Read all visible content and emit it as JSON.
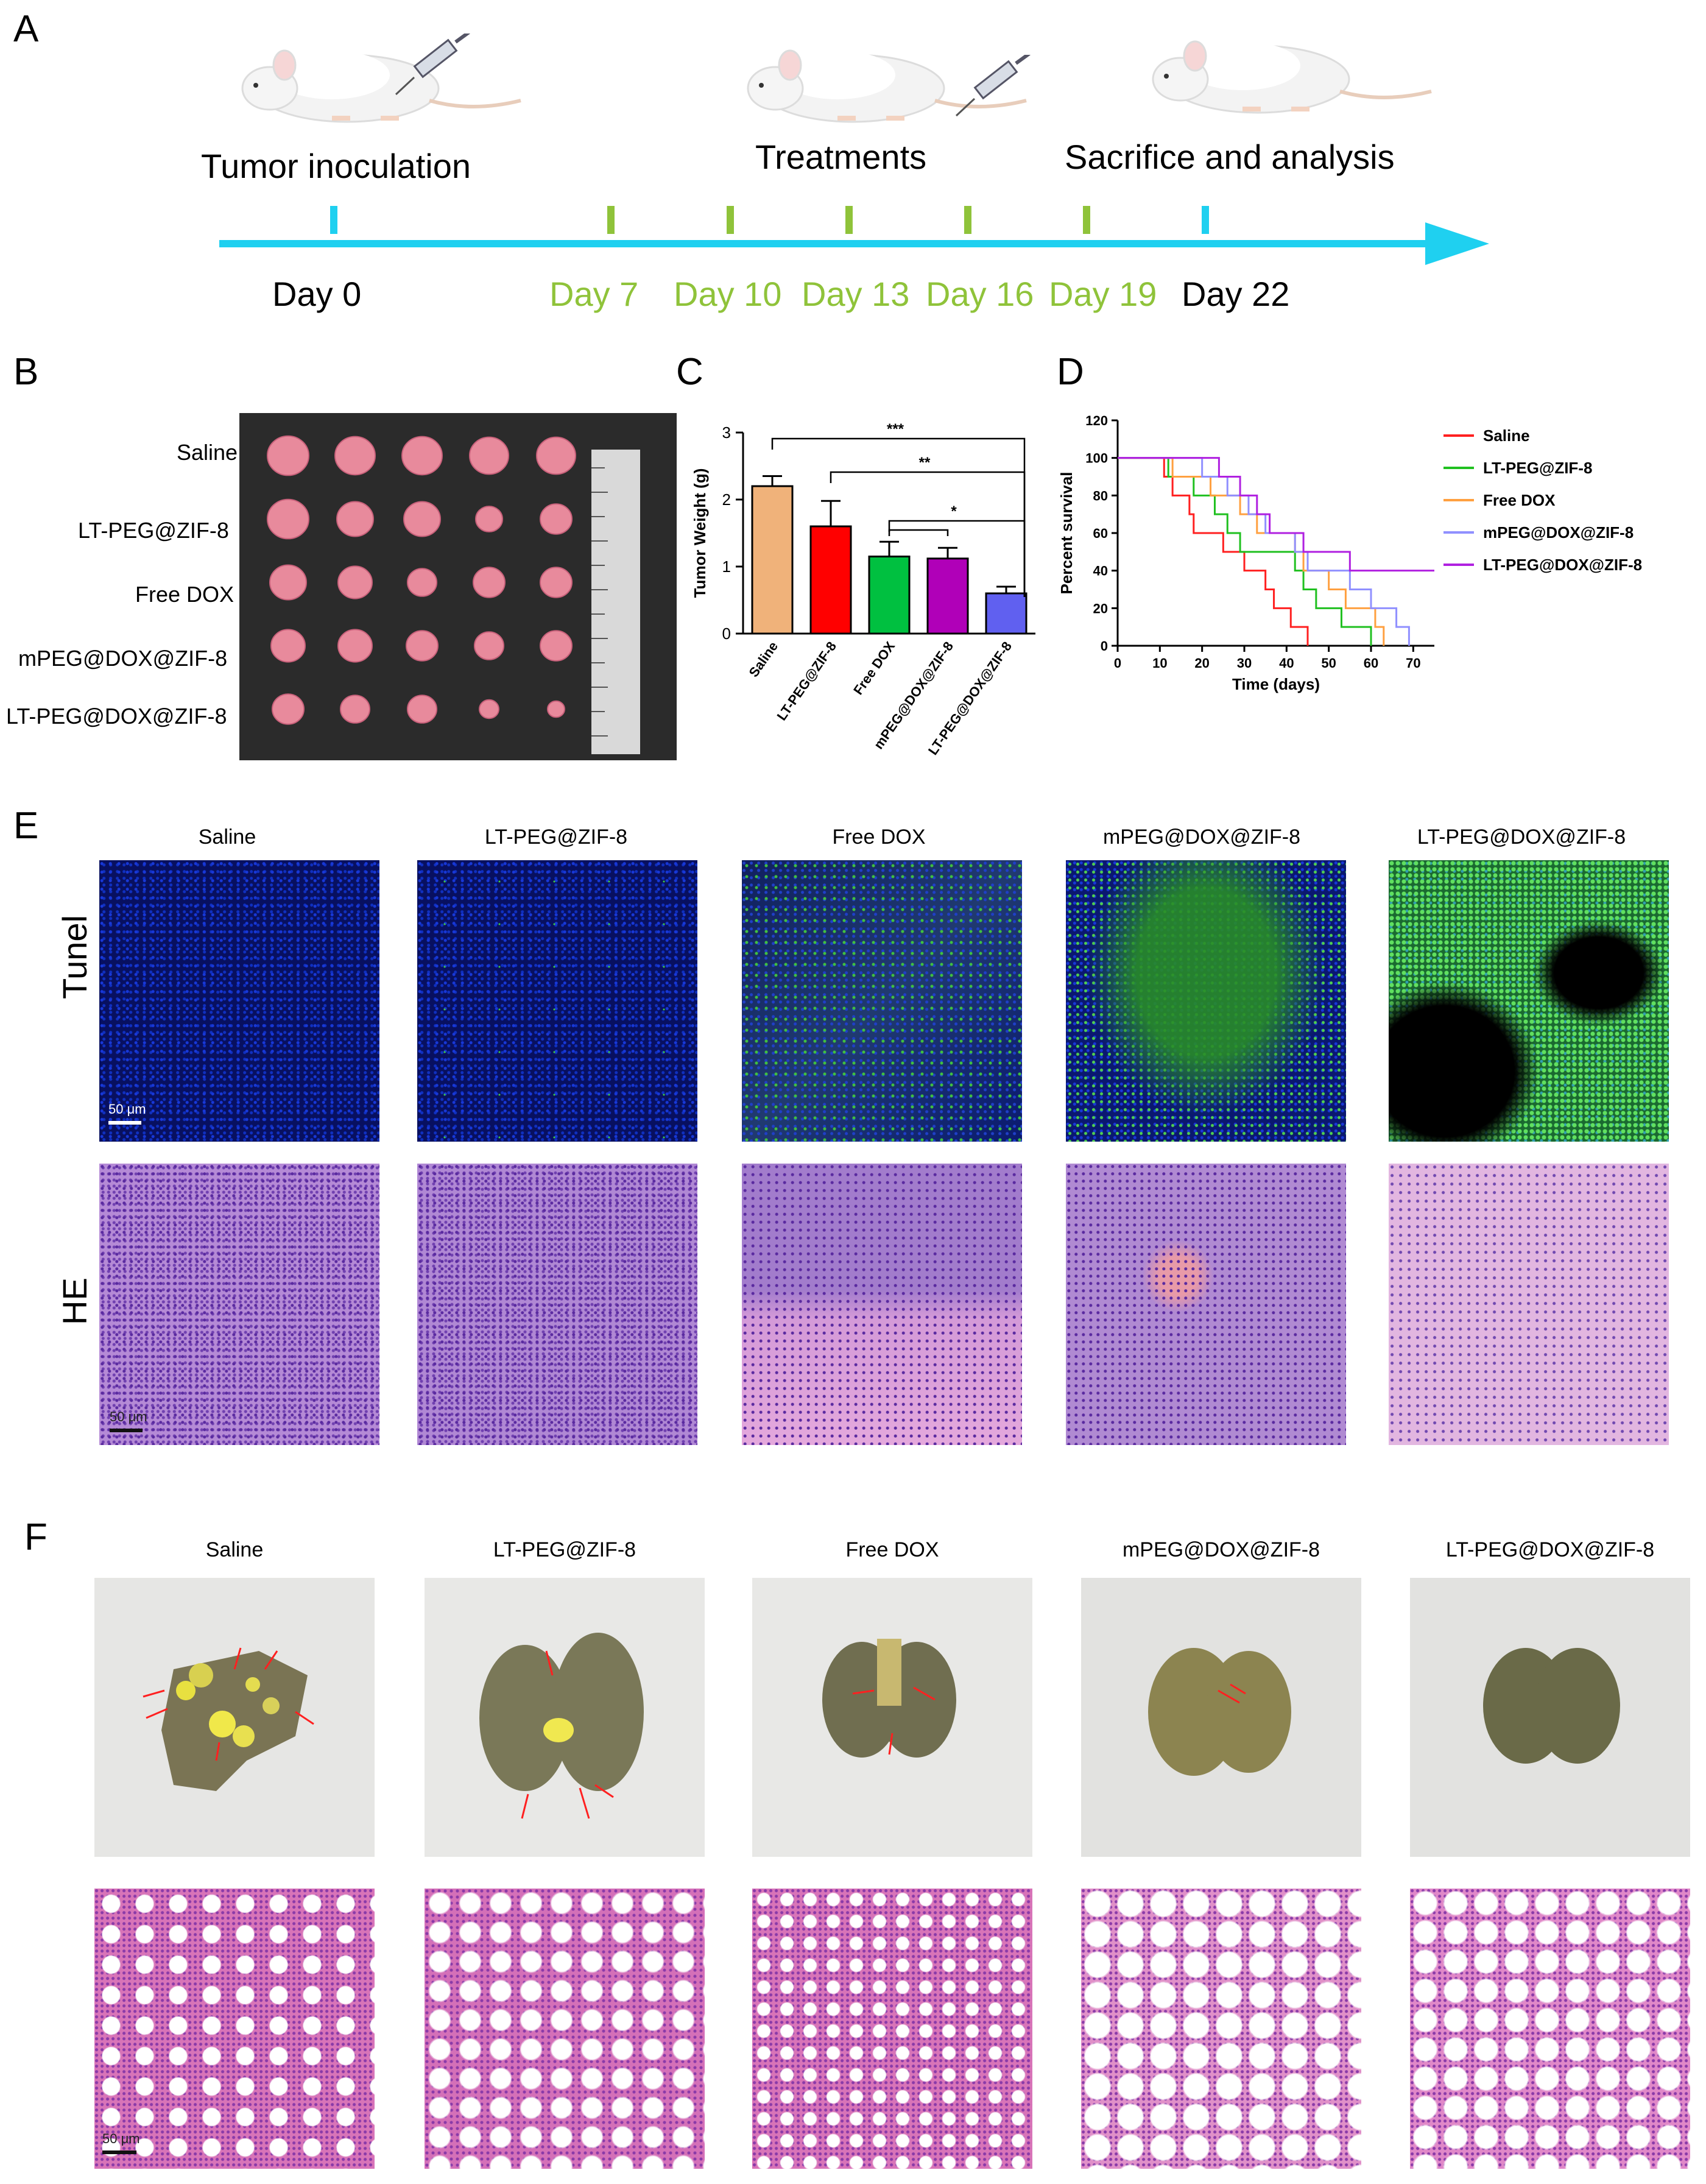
{
  "panels": {
    "a": "A",
    "b": "B",
    "c": "C",
    "d": "D",
    "e": "E",
    "f": "F"
  },
  "timeline": {
    "events": [
      "Tumor inoculation",
      "Treatments",
      "Sacrifice and analysis"
    ],
    "days_black": [
      "Day 0",
      "Day 22"
    ],
    "days_green": [
      "Day 7",
      "Day 10",
      "Day 13",
      "Day 16",
      "Day 19"
    ],
    "colors": {
      "axis": "#1fd0f0",
      "treatment": "#8fc33a",
      "text_green": "#8fc33a"
    }
  },
  "groups": [
    "Saline",
    "LT-PEG@ZIF-8",
    "Free DOX",
    "mPEG@DOX@ZIF-8",
    "LT-PEG@DOX@ZIF-8"
  ],
  "group_colors": [
    "#f0b27a",
    "#ff0000",
    "#00c040",
    "#b000b8",
    "#6060f0"
  ],
  "chart_data": [
    {
      "type": "bar",
      "ylabel": "Tumor Weight (g)",
      "ylim": [
        0,
        3
      ],
      "yticks": [
        "0",
        "1",
        "2",
        "3"
      ],
      "categories": [
        "Saline",
        "LT-PEG@ZIF-8",
        "Free DOX",
        "mPEG@DOX@ZIF-8",
        "LT-PEG@DOX@ZIF-8"
      ],
      "values": [
        2.2,
        1.6,
        1.15,
        1.12,
        0.6
      ],
      "errors": [
        0.15,
        0.38,
        0.22,
        0.16,
        0.1
      ],
      "significance": [
        "***",
        "**",
        "*"
      ]
    },
    {
      "type": "line",
      "xlabel": "Time (days)",
      "ylabel": "Percent survival",
      "xlim": [
        0,
        75
      ],
      "ylim": [
        0,
        120
      ],
      "xticks": [
        "0",
        "10",
        "20",
        "30",
        "40",
        "50",
        "60",
        "70"
      ],
      "yticks": [
        "0",
        "20",
        "40",
        "60",
        "80",
        "100",
        "120"
      ],
      "legend": "right",
      "series": [
        {
          "name": "Saline",
          "color": "#ff2020",
          "steps": [
            [
              0,
              100
            ],
            [
              11,
              100
            ],
            [
              11,
              90
            ],
            [
              13,
              90
            ],
            [
              13,
              80
            ],
            [
              17,
              80
            ],
            [
              17,
              70
            ],
            [
              18,
              70
            ],
            [
              18,
              60
            ],
            [
              25,
              60
            ],
            [
              25,
              50
            ],
            [
              30,
              50
            ],
            [
              30,
              40
            ],
            [
              35,
              40
            ],
            [
              35,
              30
            ],
            [
              37,
              30
            ],
            [
              37,
              20
            ],
            [
              41,
              20
            ],
            [
              41,
              10
            ],
            [
              45,
              10
            ],
            [
              45,
              0
            ]
          ]
        },
        {
          "name": "LT-PEG@ZIF-8",
          "color": "#20c020",
          "steps": [
            [
              0,
              100
            ],
            [
              12,
              100
            ],
            [
              12,
              90
            ],
            [
              18,
              90
            ],
            [
              18,
              80
            ],
            [
              23,
              80
            ],
            [
              23,
              70
            ],
            [
              26,
              70
            ],
            [
              26,
              60
            ],
            [
              29,
              60
            ],
            [
              29,
              50
            ],
            [
              42,
              50
            ],
            [
              42,
              40
            ],
            [
              44,
              40
            ],
            [
              44,
              30
            ],
            [
              47,
              30
            ],
            [
              47,
              20
            ],
            [
              53,
              20
            ],
            [
              53,
              10
            ],
            [
              60,
              10
            ],
            [
              60,
              0
            ]
          ]
        },
        {
          "name": "Free DOX",
          "color": "#ffa040",
          "steps": [
            [
              0,
              100
            ],
            [
              13,
              100
            ],
            [
              13,
              90
            ],
            [
              22,
              90
            ],
            [
              22,
              80
            ],
            [
              29,
              80
            ],
            [
              29,
              70
            ],
            [
              33,
              70
            ],
            [
              33,
              60
            ],
            [
              42,
              60
            ],
            [
              42,
              50
            ],
            [
              44,
              50
            ],
            [
              44,
              40
            ],
            [
              50,
              40
            ],
            [
              50,
              30
            ],
            [
              54,
              30
            ],
            [
              54,
              20
            ],
            [
              61,
              20
            ],
            [
              61,
              10
            ],
            [
              63,
              10
            ],
            [
              63,
              0
            ]
          ]
        },
        {
          "name": "mPEG@DOX@ZIF-8",
          "color": "#9090ff",
          "steps": [
            [
              0,
              100
            ],
            [
              20,
              100
            ],
            [
              20,
              90
            ],
            [
              26,
              90
            ],
            [
              26,
              80
            ],
            [
              31,
              80
            ],
            [
              31,
              70
            ],
            [
              35,
              70
            ],
            [
              35,
              60
            ],
            [
              42,
              60
            ],
            [
              42,
              50
            ],
            [
              45,
              50
            ],
            [
              45,
              40
            ],
            [
              55,
              40
            ],
            [
              55,
              30
            ],
            [
              60,
              30
            ],
            [
              60,
              20
            ],
            [
              66,
              20
            ],
            [
              66,
              10
            ],
            [
              69,
              10
            ],
            [
              69,
              0
            ]
          ]
        },
        {
          "name": "LT-PEG@DOX@ZIF-8",
          "color": "#b020e0",
          "steps": [
            [
              0,
              100
            ],
            [
              24,
              100
            ],
            [
              24,
              90
            ],
            [
              29,
              90
            ],
            [
              29,
              80
            ],
            [
              33,
              80
            ],
            [
              33,
              70
            ],
            [
              36,
              70
            ],
            [
              36,
              60
            ],
            [
              44,
              60
            ],
            [
              44,
              50
            ],
            [
              55,
              50
            ],
            [
              55,
              40
            ],
            [
              75,
              40
            ]
          ]
        }
      ]
    }
  ],
  "panel_e": {
    "row_labels": [
      "Tunel",
      "HE"
    ],
    "scale": "50 μm"
  },
  "panel_f": {
    "scale": "50 μm"
  }
}
